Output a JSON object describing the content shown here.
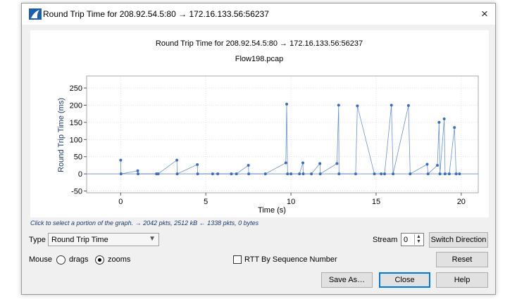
{
  "window": {
    "title": "Round Trip Time for 208.92.54.5:80 → 172.16.133.56:56237",
    "close_glyph": "×",
    "app_icon": "wireshark-fin-icon"
  },
  "chart_data": {
    "type": "scatter",
    "title": "Round Trip Time for 208.92.54.5:80 → 172.16.133.56:56237",
    "subtitle": "Flow198.pcap",
    "xlabel": "Time (s)",
    "ylabel": "Round Trip Time (ms)",
    "xlim": [
      -2,
      21
    ],
    "ylim": [
      -55,
      285
    ],
    "xticks": [
      0,
      5,
      10,
      15,
      20
    ],
    "yticks": [
      -50,
      0,
      50,
      100,
      150,
      200,
      250
    ],
    "grid": true,
    "series_color": "#3d6db5",
    "points": [
      {
        "x": 0.0,
        "y": 40
      },
      {
        "x": 0.02,
        "y": 0
      },
      {
        "x": 1.0,
        "y": 9
      },
      {
        "x": 1.02,
        "y": 0
      },
      {
        "x": 2.1,
        "y": 0
      },
      {
        "x": 2.2,
        "y": 0
      },
      {
        "x": 3.3,
        "y": 40
      },
      {
        "x": 3.32,
        "y": 0
      },
      {
        "x": 4.5,
        "y": 27
      },
      {
        "x": 4.52,
        "y": 0
      },
      {
        "x": 5.4,
        "y": 0
      },
      {
        "x": 5.7,
        "y": 0
      },
      {
        "x": 6.5,
        "y": 0
      },
      {
        "x": 6.8,
        "y": 0
      },
      {
        "x": 7.5,
        "y": 25
      },
      {
        "x": 7.52,
        "y": 0
      },
      {
        "x": 8.5,
        "y": 0
      },
      {
        "x": 9.7,
        "y": 32
      },
      {
        "x": 9.75,
        "y": 203
      },
      {
        "x": 9.8,
        "y": 0
      },
      {
        "x": 10.0,
        "y": 0
      },
      {
        "x": 10.5,
        "y": 0
      },
      {
        "x": 10.7,
        "y": 32
      },
      {
        "x": 10.72,
        "y": 0
      },
      {
        "x": 11.2,
        "y": 0
      },
      {
        "x": 11.7,
        "y": 30
      },
      {
        "x": 11.72,
        "y": 0
      },
      {
        "x": 12.7,
        "y": 30
      },
      {
        "x": 12.8,
        "y": 200
      },
      {
        "x": 12.82,
        "y": 0
      },
      {
        "x": 13.8,
        "y": 0
      },
      {
        "x": 13.9,
        "y": 198
      },
      {
        "x": 14.9,
        "y": 0
      },
      {
        "x": 15.3,
        "y": 0
      },
      {
        "x": 15.5,
        "y": 0
      },
      {
        "x": 15.9,
        "y": 200
      },
      {
        "x": 16.0,
        "y": 0
      },
      {
        "x": 16.9,
        "y": 199
      },
      {
        "x": 17.0,
        "y": 0
      },
      {
        "x": 18.0,
        "y": 28
      },
      {
        "x": 18.05,
        "y": 0
      },
      {
        "x": 18.6,
        "y": 25
      },
      {
        "x": 18.7,
        "y": 150
      },
      {
        "x": 18.75,
        "y": 0
      },
      {
        "x": 19.0,
        "y": 160
      },
      {
        "x": 19.05,
        "y": 0
      },
      {
        "x": 19.3,
        "y": 0
      },
      {
        "x": 19.6,
        "y": 135
      },
      {
        "x": 19.7,
        "y": 0
      },
      {
        "x": 19.9,
        "y": 0
      }
    ]
  },
  "hint": "Click to select a portion of the graph. → 2042 pkts, 2512 kB ← 1338 pkts, 0 bytes",
  "controls": {
    "type_label": "Type",
    "type_value": "Round Trip Time",
    "stream_label": "Stream",
    "stream_value": "0",
    "switch_direction": "Switch Direction",
    "mouse_label": "Mouse",
    "drags_label": "drags",
    "zooms_label": "zooms",
    "mouse_mode": "zooms",
    "rtt_seq_label": "RTT By Sequence Number",
    "rtt_seq_checked": false,
    "reset": "Reset",
    "save_as": "Save As…",
    "close": "Close",
    "help": "Help"
  }
}
